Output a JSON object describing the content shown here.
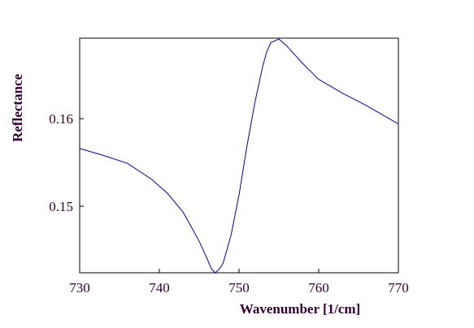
{
  "chart_data": {
    "type": "line",
    "xlabel": "Wavenumber [1/cm]",
    "ylabel": "Reflectance",
    "x": [
      730,
      733,
      736,
      739,
      741,
      743,
      745,
      746,
      746.5,
      747,
      747.5,
      748,
      749,
      750,
      751,
      752,
      753,
      753.5,
      754,
      755,
      756,
      758,
      760,
      763,
      766,
      770
    ],
    "series": [
      {
        "color": "#0000cc",
        "values": [
          0.1566,
          0.1558,
          0.1549,
          0.1531,
          0.1515,
          0.1493,
          0.146,
          0.144,
          0.1429,
          0.1424,
          0.1428,
          0.1435,
          0.1467,
          0.1513,
          0.1569,
          0.1619,
          0.1661,
          0.1677,
          0.1687,
          0.1691,
          0.1683,
          0.1663,
          0.1645,
          0.1629,
          0.1615,
          0.1594
        ]
      }
    ],
    "xlim": [
      730,
      770
    ],
    "xticks": [
      730,
      740,
      750,
      760,
      770
    ],
    "ylim": [
      0.1424,
      0.1692
    ],
    "yticks": [
      0.15,
      0.16
    ]
  }
}
